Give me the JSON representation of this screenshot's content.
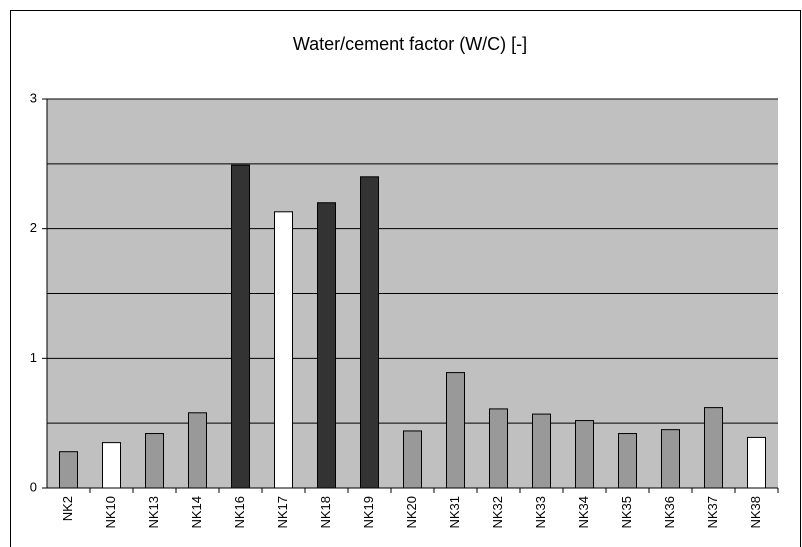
{
  "chart_data": {
    "type": "bar",
    "title": "Water/cement factor (W/C) [-]",
    "categories": [
      "NK2",
      "NK10",
      "NK13",
      "NK14",
      "NK16",
      "NK17",
      "NK18",
      "NK19",
      "NK20",
      "NK31",
      "NK32",
      "NK33",
      "NK34",
      "NK35",
      "NK36",
      "NK37",
      "NK38"
    ],
    "values": [
      0.28,
      0.35,
      0.42,
      0.58,
      2.49,
      2.13,
      2.2,
      2.4,
      0.44,
      0.89,
      0.61,
      0.57,
      0.52,
      0.42,
      0.45,
      0.62,
      0.39
    ],
    "colors": [
      "#999999",
      "#ffffff",
      "#999999",
      "#999999",
      "#333333",
      "#ffffff",
      "#333333",
      "#333333",
      "#999999",
      "#999999",
      "#999999",
      "#999999",
      "#999999",
      "#999999",
      "#999999",
      "#999999",
      "#ffffff"
    ],
    "ylim": [
      0,
      3
    ],
    "yticks": [
      0,
      1,
      2,
      3
    ],
    "y_gridlines": [
      0.5,
      1,
      1.5,
      2,
      2.5,
      3
    ],
    "grid": true,
    "plot_background": "#c0c0c0"
  }
}
